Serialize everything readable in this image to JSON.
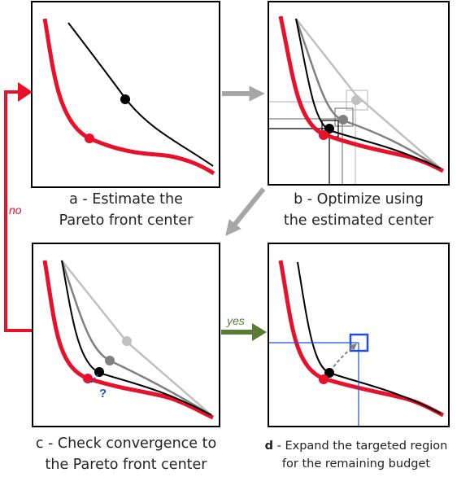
{
  "panels": {
    "a": {
      "caption_line1": "a - Estimate the",
      "caption_line2": "Pareto front center"
    },
    "b": {
      "caption_line1": "b - Optimize using",
      "caption_line2": "the estimated center"
    },
    "c": {
      "caption_line1": "c - Check convergence to",
      "caption_line2": "the Pareto front center",
      "question_mark": "?"
    },
    "d": {
      "caption_letter": "d",
      "caption_line1_rest": " - Expand the targeted region",
      "caption_line2": "for the remaining budget"
    }
  },
  "arrows": {
    "no_label": "no",
    "yes_label": "yes"
  },
  "colors": {
    "pareto_front": "#e8102a",
    "loop_arrow": "#e8102a",
    "flow_arrow": "#a6a6a6",
    "yes_arrow": "#5a7a3a",
    "target_region": "#1f4fd8",
    "curve_dark": "#000000",
    "curve_mid": "#808080",
    "curve_light": "#c0c0c0"
  }
}
